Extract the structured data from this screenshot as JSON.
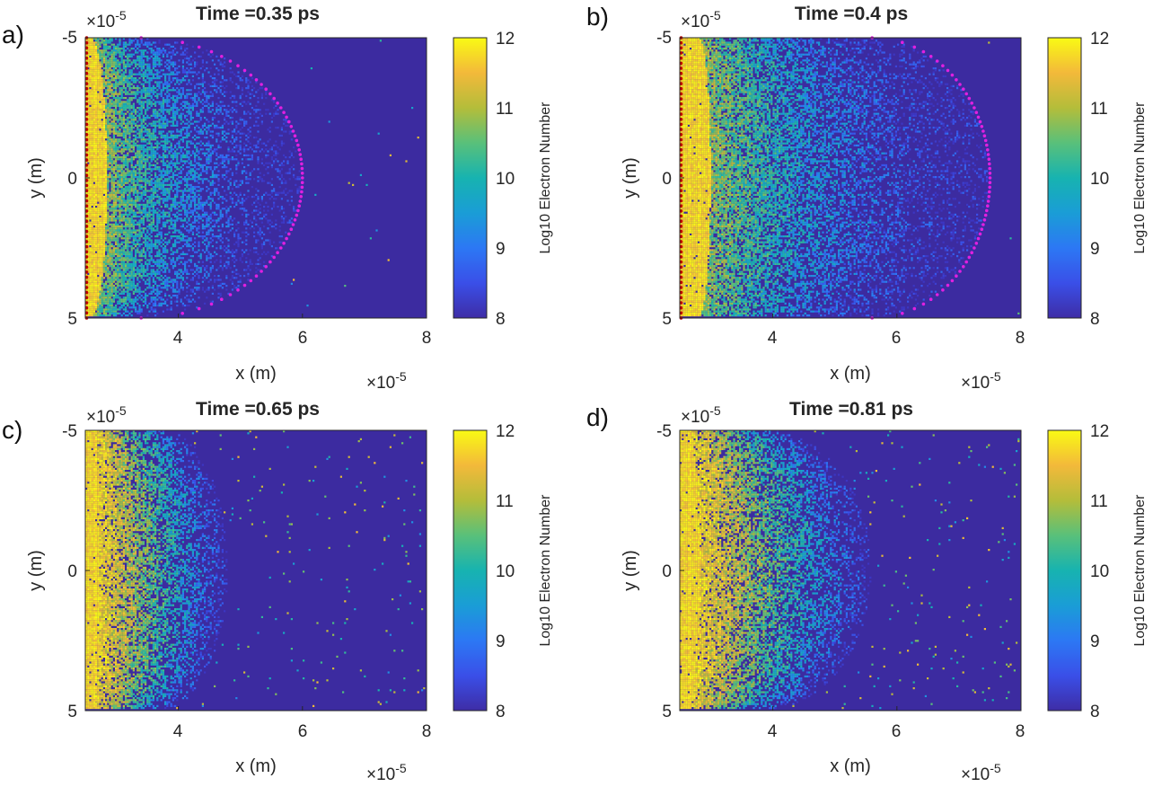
{
  "figure": {
    "colors": {
      "background": "#3c2ba0",
      "boundary_marker": "#e020e0",
      "source_marker": "#c00000",
      "axis": "#262626"
    },
    "colormap": "parula"
  },
  "chart_data": [
    {
      "type": "heatmap",
      "panel_label": "a)",
      "title": "Time =0.35 ps",
      "xlabel": "x (m)",
      "ylabel": "y (m)",
      "x_exponent_label": "×10",
      "x_exponent": "-5",
      "y_exponent_label": "×10",
      "y_exponent": "-5",
      "xlim": [
        2.5,
        8
      ],
      "ylim": [
        -5,
        5
      ],
      "xticks": [
        "4",
        "6",
        "8"
      ],
      "xtick_values": [
        4,
        6,
        8
      ],
      "yticks": [
        "-5",
        "0",
        "5"
      ],
      "ytick_values": [
        -5,
        0,
        5
      ],
      "y_direction": "reversed",
      "colorbar": {
        "label": "Log10 Electron Number",
        "range": [
          8,
          12
        ],
        "ticks": [
          "8",
          "9",
          "10",
          "11",
          "12"
        ]
      },
      "front_x_center": 6.0,
      "front_x_edge": 3.4,
      "front_marked": true,
      "source_marked": true
    },
    {
      "type": "heatmap",
      "panel_label": "b)",
      "title": "Time =0.4 ps",
      "xlabel": "x (m)",
      "ylabel": "y (m)",
      "x_exponent_label": "×10",
      "x_exponent": "-5",
      "y_exponent_label": "×10",
      "y_exponent": "-5",
      "xlim": [
        2.5,
        8
      ],
      "ylim": [
        -5,
        5
      ],
      "xticks": [
        "4",
        "6",
        "8"
      ],
      "xtick_values": [
        4,
        6,
        8
      ],
      "yticks": [
        "-5",
        "0",
        "5"
      ],
      "ytick_values": [
        -5,
        0,
        5
      ],
      "y_direction": "reversed",
      "colorbar": {
        "label": "Log10 Electron Number",
        "range": [
          8,
          12
        ],
        "ticks": [
          "8",
          "9",
          "10",
          "11",
          "12"
        ]
      },
      "front_x_center": 7.5,
      "front_x_edge": 5.6,
      "front_marked": true,
      "source_marked": true
    },
    {
      "type": "heatmap",
      "panel_label": "c)",
      "title": "Time =0.65 ps",
      "xlabel": "x (m)",
      "ylabel": "y (m)",
      "x_exponent_label": "×10",
      "x_exponent": "-5",
      "y_exponent_label": "×10",
      "y_exponent": "-5",
      "xlim": [
        2.5,
        8
      ],
      "ylim": [
        -5,
        5
      ],
      "xticks": [
        "4",
        "6",
        "8"
      ],
      "xtick_values": [
        4,
        6,
        8
      ],
      "yticks": [
        "-5",
        "0",
        "5"
      ],
      "ytick_values": [
        -5,
        0,
        5
      ],
      "y_direction": "reversed",
      "colorbar": {
        "label": "Log10 Electron Number",
        "range": [
          8,
          12
        ],
        "ticks": [
          "8",
          "9",
          "10",
          "11",
          "12"
        ]
      },
      "front_x_center": 4.8,
      "front_x_edge": 3.8,
      "front_marked": false,
      "source_marked": false
    },
    {
      "type": "heatmap",
      "panel_label": "d)",
      "title": "Time =0.81 ps",
      "xlabel": "x (m)",
      "ylabel": "y (m)",
      "x_exponent_label": "×10",
      "x_exponent": "-5",
      "y_exponent_label": "×10",
      "y_exponent": "-5",
      "xlim": [
        2.5,
        8
      ],
      "ylim": [
        -5,
        5
      ],
      "xticks": [
        "4",
        "6",
        "8"
      ],
      "xtick_values": [
        4,
        6,
        8
      ],
      "yticks": [
        "-5",
        "0",
        "5"
      ],
      "ytick_values": [
        -5,
        0,
        5
      ],
      "y_direction": "reversed",
      "colorbar": {
        "label": "Log10 Electron Number",
        "range": [
          8,
          12
        ],
        "ticks": [
          "8",
          "9",
          "10",
          "11",
          "12"
        ]
      },
      "front_x_center": 5.6,
      "front_x_edge": 3.9,
      "front_marked": false,
      "source_marked": false
    }
  ]
}
